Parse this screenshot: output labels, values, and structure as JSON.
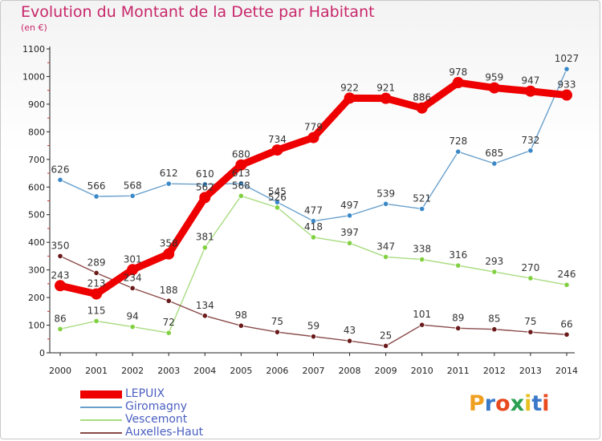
{
  "title": "Evolution du Montant de la Dette par Habitant",
  "subtitle": "(en €)",
  "logo": {
    "text": "Proxiti",
    "letter_colors": [
      "#f0a020",
      "#3a78c8",
      "#e84a20",
      "#2aa050",
      "#e8c020",
      "#3a78c8",
      "#e84a20"
    ]
  },
  "chart_data": {
    "type": "line",
    "title": "Evolution du Montant de la Dette par Habitant",
    "ylabel": "(en €)",
    "xlabel": "",
    "x": [
      "2000",
      "2001",
      "2002",
      "2003",
      "2004",
      "2005",
      "2006",
      "2007",
      "2008",
      "2009",
      "2010",
      "2011",
      "2012",
      "2013",
      "2014"
    ],
    "ylim": [
      0,
      1100
    ],
    "yticks": [
      "0",
      "100",
      "200",
      "300",
      "400",
      "500",
      "600",
      "700",
      "800",
      "900",
      "1000",
      "1100"
    ],
    "grid": false,
    "legend_position": "bottom-left",
    "series": [
      {
        "name": "LEPUIX",
        "color": "#ee0000",
        "emphasis": true,
        "values": [
          243,
          213,
          301,
          358,
          562,
          680,
          734,
          779,
          922,
          921,
          886,
          978,
          959,
          947,
          933
        ],
        "labels": [
          "243",
          "213",
          "301",
          "358",
          "562",
          "680",
          "734",
          "779",
          "922",
          "921",
          "886",
          "978",
          "959",
          "947",
          "933"
        ]
      },
      {
        "name": "Giromagny",
        "color": "#6aa0cc",
        "point_color": "#3a88c8",
        "values": [
          626,
          566,
          568,
          612,
          610,
          613,
          545,
          477,
          497,
          539,
          521,
          728,
          685,
          732,
          1027
        ],
        "labels": [
          "626",
          "566",
          "568",
          "612",
          "610",
          "613",
          "545",
          "477",
          "497",
          "539",
          "521",
          "728",
          "685",
          "732",
          "1027"
        ]
      },
      {
        "name": "Vescemont",
        "color": "#a8dc80",
        "point_color": "#80d040",
        "values": [
          86,
          115,
          94,
          72,
          381,
          568,
          526,
          418,
          397,
          347,
          338,
          316,
          293,
          270,
          246
        ],
        "labels": [
          "86",
          "115",
          "94",
          "72",
          "381",
          "568",
          "526",
          "418",
          "397",
          "347",
          "338",
          "316",
          "293",
          "270",
          "246"
        ]
      },
      {
        "name": "Auxelles-Haut",
        "color": "#8a4a4a",
        "point_color": "#6a1a1a",
        "values": [
          350,
          289,
          234,
          188,
          134,
          98,
          75,
          59,
          43,
          25,
          101,
          89,
          85,
          75,
          66
        ],
        "labels": [
          "350",
          "289",
          "234",
          "188",
          "134",
          "98",
          "75",
          "59",
          "43",
          "25",
          "101",
          "89",
          "85",
          "75",
          "66"
        ]
      }
    ]
  }
}
